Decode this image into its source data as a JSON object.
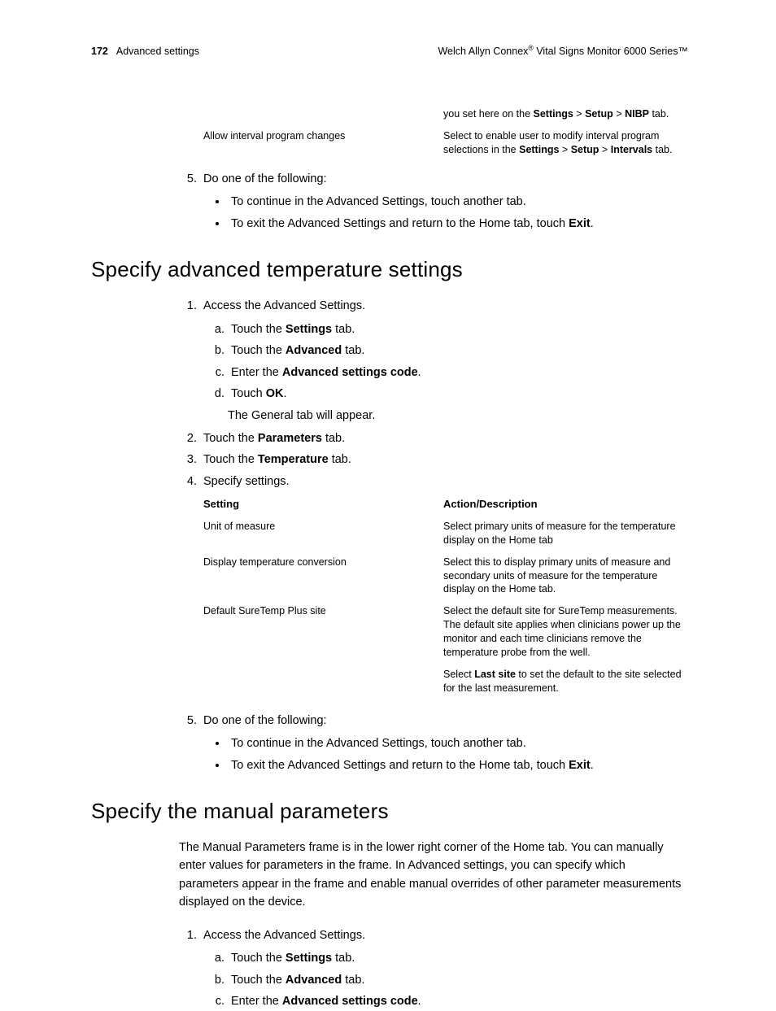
{
  "header": {
    "page_number": "172",
    "section": "Advanced settings",
    "product_pre": "Welch Allyn Connex",
    "product_sup": "®",
    "product_post": " Vital Signs Monitor 6000 Series™"
  },
  "top_table": {
    "rows": [
      {
        "setting": "",
        "action_html": "you set here on the <b>Settings</b> <span class='gt'>&gt;</span> <b>Setup</b> <span class='gt'>&gt;</span> <b>NIBP</b> tab."
      },
      {
        "setting": "Allow interval program changes",
        "action_html": "Select to enable user to modify interval program selections in the <b>Settings</b> <span class='gt'>&gt;</span> <b>Setup</b> <span class='gt'>&gt;</span> <b>Intervals</b> tab."
      }
    ]
  },
  "step5": {
    "lead": "Do one of the following:",
    "b1": "To continue in the Advanced Settings, touch another tab.",
    "b2_html": "To exit the Advanced Settings and return to the Home tab, touch <b>Exit</b>."
  },
  "section_temp": {
    "heading": "Specify advanced temperature settings",
    "step1": {
      "lead": "Access the Advanced Settings.",
      "a_html": "Touch the <b>Settings</b> tab.",
      "b_html": "Touch the <b>Advanced</b> tab.",
      "c_html": "Enter the <b>Advanced settings code</b>.",
      "d_html": "Touch <b>OK</b>.",
      "result": "The General tab will appear."
    },
    "step2_html": "Touch the <b>Parameters</b> tab.",
    "step3_html": "Touch the <b>Temperature</b> tab.",
    "step4": "Specify settings.",
    "table": {
      "header_setting": "Setting",
      "header_action": "Action/Description",
      "rows": [
        {
          "setting": "Unit of measure",
          "action_html": "Select primary units of measure for the temperature display on the Home tab"
        },
        {
          "setting": "Display temperature conversion",
          "action_html": "Select this to display primary units of measure and secondary units of measure for the temperature display on the Home tab."
        },
        {
          "setting": "Default SureTemp Plus site",
          "action_html": "Select the default site for SureTemp measurements. The default site applies when clinicians power up the monitor and each time clinicians remove the temperature probe from the well.",
          "action2_html": "Select <b>Last site</b> to set the default to the site selected for the last measurement."
        }
      ]
    },
    "step5": {
      "lead": "Do one of the following:",
      "b1": "To continue in the Advanced Settings, touch another tab.",
      "b2_html": "To exit the Advanced Settings and return to the Home tab, touch <b>Exit</b>."
    }
  },
  "section_manual": {
    "heading": "Specify the manual parameters",
    "intro": "The Manual Parameters frame is in the lower right corner of the Home tab. You can manually enter values for parameters in the frame. In Advanced settings, you can specify which parameters appear in the frame and enable manual overrides of other parameter measurements displayed on the device.",
    "step1": {
      "lead": "Access the Advanced Settings.",
      "a_html": "Touch the <b>Settings</b> tab.",
      "b_html": "Touch the <b>Advanced</b> tab.",
      "c_html": "Enter the <b>Advanced settings code</b>."
    }
  }
}
